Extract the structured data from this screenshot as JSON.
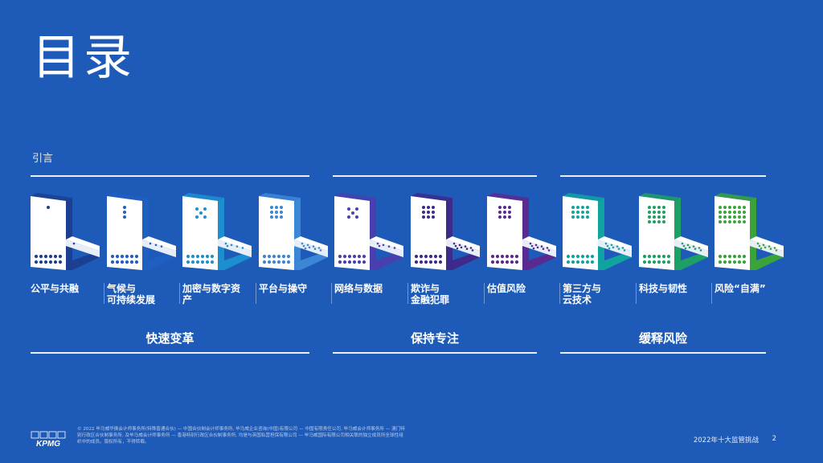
{
  "title": "目录",
  "intro": "引言",
  "items": [
    {
      "label": "公平与共融",
      "color": "#1d3f91",
      "dots": 1
    },
    {
      "label": "气候与\n可持续发展",
      "color": "#1f5fc2",
      "dots": 3
    },
    {
      "label": "加密与数字资\n产",
      "color": "#1d8fd1",
      "dots": 5
    },
    {
      "label": "平台与操守",
      "color": "#3b87d6",
      "dots": 9
    },
    {
      "label": "网络与数据",
      "color": "#4a3fae",
      "dots": 5
    },
    {
      "label": "欺诈与\n金融犯罪",
      "color": "#3d2a8a",
      "dots": 9
    },
    {
      "label": "估值风险",
      "color": "#5b2a91",
      "dots": 9
    },
    {
      "label": "第三方与\n云技术",
      "color": "#11a3a0",
      "dots": 12
    },
    {
      "label": "科技与韧性",
      "color": "#1e9f65",
      "dots": 16
    },
    {
      "label": "风险“自满”",
      "color": "#3aa43a",
      "dots": 24
    }
  ],
  "groups": [
    {
      "label": "快速变革"
    },
    {
      "label": "保持专注"
    },
    {
      "label": "缓释风险"
    }
  ],
  "footer": {
    "logo": "KPMG",
    "legal": "© 2022 毕马威华振会计师事务所(特殊普通合伙) — 中国合伙制会计师事务所, 毕马威企业咨询(中国)有限公司 — 中国有限责任公司, 毕马威会计师事务所 — 澳门特别行政区合伙制事务所, 及毕马威会计师事务所 — 香港特别行政区合伙制事务所, 均是与英国私营担保有限公司 — 毕马威国际有限公司相关联的独立成员所全球性组织中的成员。版权所有，不得转载。",
    "doc_title": "2022年十大监管挑战",
    "page": "2"
  }
}
